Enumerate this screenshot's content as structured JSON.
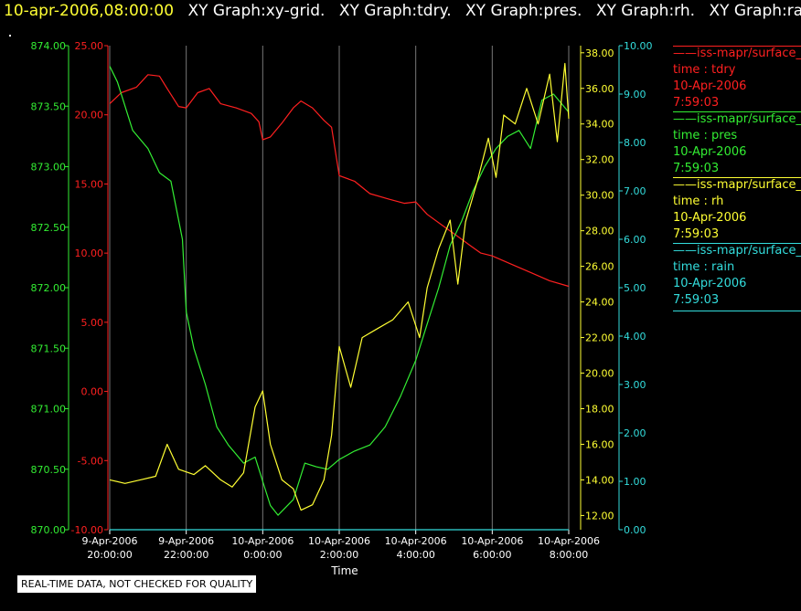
{
  "header": {
    "timestamp": "10-apr-2006,08:00:00",
    "graphs": [
      "XY Graph:xy-grid.",
      "XY Graph:tdry.",
      "XY Graph:pres.",
      "XY Graph:rh.",
      "XY Graph:rain"
    ]
  },
  "footer": {
    "quality_note": "REAL-TIME DATA, NOT CHECKED FOR QUALITY"
  },
  "legend": [
    {
      "source": "iss-mapr/surface_m",
      "var": "time : tdry",
      "date": "10-Apr-2006",
      "time": "7:59:03",
      "color": "#ff2020"
    },
    {
      "source": "iss-mapr/surface_m",
      "var": "time : pres",
      "date": "10-Apr-2006",
      "time": "7:59:03",
      "color": "#33ee33"
    },
    {
      "source": "iss-mapr/surface_m",
      "var": "time : rh",
      "date": "10-Apr-2006",
      "time": "7:59:03",
      "color": "#ffff33"
    },
    {
      "source": "iss-mapr/surface_m",
      "var": "time : rain",
      "date": "10-Apr-2006",
      "time": "7:59:03",
      "color": "#33dddd"
    }
  ],
  "chart_data": {
    "type": "line",
    "xlabel": "Time",
    "x_ticks": [
      {
        "line1": "9-Apr-2006",
        "line2": "20:00:00",
        "h": 20
      },
      {
        "line1": "9-Apr-2006",
        "line2": "22:00:00",
        "h": 22
      },
      {
        "line1": "10-Apr-2006",
        "line2": "0:00:00",
        "h": 24
      },
      {
        "line1": "10-Apr-2006",
        "line2": "2:00:00",
        "h": 26
      },
      {
        "line1": "10-Apr-2006",
        "line2": "4:00:00",
        "h": 28
      },
      {
        "line1": "10-Apr-2006",
        "line2": "6:00:00",
        "h": 30
      },
      {
        "line1": "10-Apr-2006",
        "line2": "8:00:00",
        "h": 32
      }
    ],
    "grid": "vertical",
    "axes": {
      "pres": {
        "color": "#33ee33",
        "side": "left-outer",
        "range": [
          870.0,
          874.0
        ],
        "ticks": [
          "870.00",
          "870.50",
          "871.00",
          "871.50",
          "872.00",
          "872.50",
          "873.00",
          "873.50",
          "874.00"
        ]
      },
      "tdry": {
        "color": "#ff2020",
        "side": "left-inner",
        "range": [
          -10.0,
          25.0
        ],
        "ticks": [
          "-10.00",
          "-5.00",
          "0.00",
          "5.00",
          "10.00",
          "15.00",
          "20.00",
          "25.00"
        ]
      },
      "rh": {
        "color": "#ffff33",
        "side": "right-inner",
        "range": [
          11.2,
          38.4
        ],
        "ticks": [
          "12.00",
          "14.00",
          "16.00",
          "18.00",
          "20.00",
          "22.00",
          "24.00",
          "26.00",
          "28.00",
          "30.00",
          "32.00",
          "34.00",
          "36.00",
          "38.00"
        ]
      },
      "rain": {
        "color": "#33dddd",
        "side": "right-outer",
        "range": [
          0.0,
          10.0
        ],
        "ticks": [
          "0.00",
          "1.00",
          "2.00",
          "3.00",
          "4.00",
          "5.00",
          "6.00",
          "7.00",
          "8.00",
          "9.00",
          "10.00"
        ]
      }
    },
    "series": [
      {
        "axis": "tdry",
        "color": "#ff2020",
        "points": [
          [
            20.0,
            20.8
          ],
          [
            20.3,
            21.6
          ],
          [
            20.7,
            22.0
          ],
          [
            21.0,
            22.9
          ],
          [
            21.3,
            22.8
          ],
          [
            21.5,
            21.9
          ],
          [
            21.8,
            20.6
          ],
          [
            22.0,
            20.5
          ],
          [
            22.3,
            21.6
          ],
          [
            22.6,
            21.9
          ],
          [
            22.9,
            20.8
          ],
          [
            23.3,
            20.5
          ],
          [
            23.7,
            20.1
          ],
          [
            23.9,
            19.5
          ],
          [
            24.0,
            18.2
          ],
          [
            24.2,
            18.4
          ],
          [
            24.5,
            19.4
          ],
          [
            24.8,
            20.5
          ],
          [
            25.0,
            21.0
          ],
          [
            25.3,
            20.5
          ],
          [
            25.6,
            19.6
          ],
          [
            25.8,
            19.1
          ],
          [
            26.0,
            15.6
          ],
          [
            26.4,
            15.2
          ],
          [
            26.8,
            14.3
          ],
          [
            27.3,
            13.9
          ],
          [
            27.7,
            13.6
          ],
          [
            28.0,
            13.7
          ],
          [
            28.3,
            12.8
          ],
          [
            28.7,
            12.0
          ],
          [
            29.0,
            11.4
          ],
          [
            29.4,
            10.6
          ],
          [
            29.7,
            10.0
          ],
          [
            30.0,
            9.8
          ],
          [
            30.5,
            9.2
          ],
          [
            31.0,
            8.6
          ],
          [
            31.5,
            8.0
          ],
          [
            32.0,
            7.6
          ]
        ]
      },
      {
        "axis": "pres",
        "color": "#33ee33",
        "points": [
          [
            20.0,
            873.83
          ],
          [
            20.2,
            873.7
          ],
          [
            20.6,
            873.3
          ],
          [
            21.0,
            873.15
          ],
          [
            21.3,
            872.95
          ],
          [
            21.6,
            872.88
          ],
          [
            21.9,
            872.4
          ],
          [
            22.0,
            871.8
          ],
          [
            22.2,
            871.5
          ],
          [
            22.5,
            871.2
          ],
          [
            22.8,
            870.85
          ],
          [
            23.1,
            870.7
          ],
          [
            23.5,
            870.55
          ],
          [
            23.8,
            870.6
          ],
          [
            24.0,
            870.4
          ],
          [
            24.2,
            870.2
          ],
          [
            24.4,
            870.12
          ],
          [
            24.8,
            870.25
          ],
          [
            25.1,
            870.55
          ],
          [
            25.4,
            870.52
          ],
          [
            25.7,
            870.5
          ],
          [
            26.0,
            870.58
          ],
          [
            26.4,
            870.65
          ],
          [
            26.8,
            870.7
          ],
          [
            27.2,
            870.85
          ],
          [
            27.6,
            871.1
          ],
          [
            28.0,
            871.4
          ],
          [
            28.3,
            871.7
          ],
          [
            28.6,
            872.0
          ],
          [
            28.9,
            872.35
          ],
          [
            29.2,
            872.55
          ],
          [
            29.5,
            872.8
          ],
          [
            29.8,
            873.0
          ],
          [
            30.1,
            873.15
          ],
          [
            30.4,
            873.25
          ],
          [
            30.7,
            873.3
          ],
          [
            31.0,
            873.15
          ],
          [
            31.3,
            873.55
          ],
          [
            31.6,
            873.6
          ],
          [
            32.0,
            873.45
          ]
        ]
      },
      {
        "axis": "rh",
        "color": "#ffff33",
        "points": [
          [
            20.0,
            14.0
          ],
          [
            20.4,
            13.8
          ],
          [
            20.8,
            14.0
          ],
          [
            21.2,
            14.2
          ],
          [
            21.5,
            16.0
          ],
          [
            21.8,
            14.6
          ],
          [
            22.2,
            14.3
          ],
          [
            22.5,
            14.8
          ],
          [
            22.9,
            14.0
          ],
          [
            23.2,
            13.6
          ],
          [
            23.5,
            14.4
          ],
          [
            23.8,
            18.1
          ],
          [
            24.0,
            19.0
          ],
          [
            24.2,
            16.0
          ],
          [
            24.5,
            14.0
          ],
          [
            24.8,
            13.5
          ],
          [
            25.0,
            12.3
          ],
          [
            25.3,
            12.6
          ],
          [
            25.6,
            14.0
          ],
          [
            25.8,
            16.5
          ],
          [
            26.0,
            21.5
          ],
          [
            26.3,
            19.2
          ],
          [
            26.6,
            22.0
          ],
          [
            27.0,
            22.5
          ],
          [
            27.4,
            23.0
          ],
          [
            27.8,
            24.0
          ],
          [
            28.1,
            22.0
          ],
          [
            28.3,
            24.8
          ],
          [
            28.6,
            27.0
          ],
          [
            28.9,
            28.6
          ],
          [
            29.1,
            25.0
          ],
          [
            29.3,
            28.5
          ],
          [
            29.6,
            30.7
          ],
          [
            29.9,
            33.2
          ],
          [
            30.1,
            31.0
          ],
          [
            30.3,
            34.5
          ],
          [
            30.6,
            34.0
          ],
          [
            30.9,
            36.0
          ],
          [
            31.2,
            34.0
          ],
          [
            31.5,
            36.8
          ],
          [
            31.7,
            33.0
          ],
          [
            31.9,
            37.4
          ],
          [
            32.0,
            34.3
          ]
        ]
      },
      {
        "axis": "rain",
        "color": "#33dddd",
        "points": [
          [
            20.0,
            0.0
          ],
          [
            32.0,
            0.0
          ]
        ]
      }
    ]
  }
}
